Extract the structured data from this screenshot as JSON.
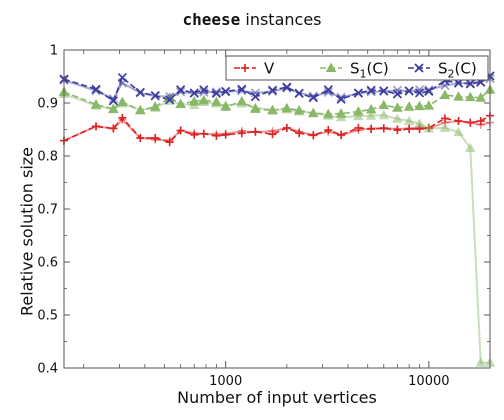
{
  "chart_data": {
    "type": "line",
    "title_code": "cheese",
    "title_rest": " instances",
    "xlabel": "Number of input vertices",
    "ylabel": "Relative solution size",
    "xscale": "log",
    "xlim": [
      160,
      20000
    ],
    "ylim": [
      0.4,
      1.0
    ],
    "xticks": [
      1000,
      10000
    ],
    "xtick_labels": [
      "1000",
      "10000"
    ],
    "yticks": [
      0.4,
      0.5,
      0.6,
      0.7,
      0.8,
      0.9,
      1.0
    ],
    "ytick_labels": [
      "0.4",
      "0.5",
      "0.6",
      "0.7",
      "0.8",
      "0.9",
      "1"
    ],
    "legend_position": "top-right",
    "grid": false,
    "series": [
      {
        "name": "V",
        "color": "#dd2222",
        "marker": "plus",
        "solid": [
          [
            160,
            0.829
          ],
          [
            230,
            0.856
          ],
          [
            280,
            0.852
          ],
          [
            310,
            0.868
          ],
          [
            380,
            0.834
          ],
          [
            450,
            0.831
          ],
          [
            530,
            0.829
          ],
          [
            600,
            0.848
          ],
          [
            700,
            0.843
          ],
          [
            780,
            0.842
          ],
          [
            900,
            0.841
          ],
          [
            1000,
            0.842
          ],
          [
            1200,
            0.847
          ],
          [
            1400,
            0.845
          ],
          [
            1700,
            0.847
          ],
          [
            2000,
            0.853
          ],
          [
            2300,
            0.846
          ],
          [
            2700,
            0.84
          ],
          [
            3200,
            0.846
          ],
          [
            3700,
            0.839
          ],
          [
            4500,
            0.849
          ],
          [
            5200,
            0.852
          ],
          [
            6000,
            0.853
          ],
          [
            7000,
            0.851
          ],
          [
            8000,
            0.852
          ],
          [
            9000,
            0.854
          ],
          [
            10000,
            0.852
          ],
          [
            12000,
            0.863
          ],
          [
            14000,
            0.866
          ],
          [
            16000,
            0.863
          ],
          [
            18000,
            0.859
          ],
          [
            20000,
            0.863
          ]
        ],
        "dashed": [
          [
            160,
            0.829
          ],
          [
            230,
            0.856
          ],
          [
            280,
            0.852
          ],
          [
            310,
            0.872
          ],
          [
            380,
            0.834
          ],
          [
            450,
            0.834
          ],
          [
            530,
            0.826
          ],
          [
            600,
            0.848
          ],
          [
            700,
            0.84
          ],
          [
            780,
            0.842
          ],
          [
            900,
            0.838
          ],
          [
            1000,
            0.84
          ],
          [
            1200,
            0.843
          ],
          [
            1400,
            0.846
          ],
          [
            1700,
            0.841
          ],
          [
            2000,
            0.853
          ],
          [
            2300,
            0.843
          ],
          [
            2700,
            0.839
          ],
          [
            3200,
            0.849
          ],
          [
            3700,
            0.84
          ],
          [
            4500,
            0.853
          ],
          [
            5200,
            0.851
          ],
          [
            6000,
            0.852
          ],
          [
            7000,
            0.849
          ],
          [
            8000,
            0.851
          ],
          [
            9000,
            0.851
          ],
          [
            10000,
            0.853
          ],
          [
            12000,
            0.871
          ],
          [
            14000,
            0.866
          ],
          [
            16000,
            0.863
          ],
          [
            18000,
            0.866
          ],
          [
            20000,
            0.876
          ]
        ]
      },
      {
        "name": "S",
        "name_sub": "1",
        "name_suffix": "(C)",
        "color": "#88b868",
        "marker": "triangle",
        "solid": [
          [
            160,
            0.917
          ],
          [
            230,
            0.895
          ],
          [
            280,
            0.888
          ],
          [
            310,
            0.899
          ],
          [
            380,
            0.887
          ],
          [
            450,
            0.891
          ],
          [
            530,
            0.904
          ],
          [
            600,
            0.898
          ],
          [
            700,
            0.896
          ],
          [
            780,
            0.902
          ],
          [
            900,
            0.899
          ],
          [
            1000,
            0.895
          ],
          [
            1200,
            0.899
          ],
          [
            1400,
            0.891
          ],
          [
            1700,
            0.887
          ],
          [
            2000,
            0.888
          ],
          [
            2300,
            0.884
          ],
          [
            2700,
            0.881
          ],
          [
            3200,
            0.876
          ],
          [
            3700,
            0.873
          ],
          [
            4500,
            0.875
          ],
          [
            5200,
            0.876
          ],
          [
            6000,
            0.877
          ],
          [
            7000,
            0.87
          ],
          [
            8000,
            0.866
          ],
          [
            9000,
            0.861
          ],
          [
            10000,
            0.852
          ],
          [
            12000,
            0.853
          ],
          [
            14000,
            0.845
          ],
          [
            16000,
            0.815
          ],
          [
            18000,
            0.41
          ],
          [
            20000,
            0.41
          ]
        ],
        "dashed": [
          [
            160,
            0.921
          ],
          [
            230,
            0.897
          ],
          [
            280,
            0.889
          ],
          [
            310,
            0.902
          ],
          [
            380,
            0.886
          ],
          [
            450,
            0.893
          ],
          [
            530,
            0.91
          ],
          [
            600,
            0.898
          ],
          [
            700,
            0.903
          ],
          [
            780,
            0.905
          ],
          [
            900,
            0.902
          ],
          [
            1000,
            0.893
          ],
          [
            1200,
            0.903
          ],
          [
            1400,
            0.889
          ],
          [
            1700,
            0.886
          ],
          [
            2000,
            0.89
          ],
          [
            2300,
            0.886
          ],
          [
            2700,
            0.881
          ],
          [
            3200,
            0.879
          ],
          [
            3700,
            0.88
          ],
          [
            4500,
            0.884
          ],
          [
            5200,
            0.888
          ],
          [
            6000,
            0.896
          ],
          [
            7000,
            0.891
          ],
          [
            8000,
            0.893
          ],
          [
            9000,
            0.894
          ],
          [
            10000,
            0.895
          ],
          [
            12000,
            0.915
          ],
          [
            14000,
            0.912
          ],
          [
            16000,
            0.911
          ],
          [
            18000,
            0.91
          ],
          [
            20000,
            0.925
          ]
        ]
      },
      {
        "name": "S",
        "name_sub": "2",
        "name_suffix": "(C)",
        "color": "#3b3b9e",
        "marker": "x",
        "solid": [
          [
            160,
            0.943
          ],
          [
            230,
            0.923
          ],
          [
            280,
            0.908
          ],
          [
            310,
            0.938
          ],
          [
            380,
            0.919
          ],
          [
            450,
            0.913
          ],
          [
            530,
            0.912
          ],
          [
            600,
            0.921
          ],
          [
            700,
            0.918
          ],
          [
            780,
            0.92
          ],
          [
            900,
            0.921
          ],
          [
            1000,
            0.921
          ],
          [
            1200,
            0.923
          ],
          [
            1400,
            0.919
          ],
          [
            1700,
            0.922
          ],
          [
            2000,
            0.928
          ],
          [
            2300,
            0.919
          ],
          [
            2700,
            0.913
          ],
          [
            3200,
            0.92
          ],
          [
            3700,
            0.911
          ],
          [
            4500,
            0.918
          ],
          [
            5200,
            0.921
          ],
          [
            6000,
            0.922
          ],
          [
            7000,
            0.924
          ],
          [
            8000,
            0.922
          ],
          [
            9000,
            0.925
          ],
          [
            10000,
            0.925
          ],
          [
            12000,
            0.933
          ],
          [
            14000,
            0.937
          ],
          [
            16000,
            0.938
          ],
          [
            18000,
            0.94
          ],
          [
            20000,
            0.946
          ]
        ],
        "dashed": [
          [
            160,
            0.945
          ],
          [
            230,
            0.926
          ],
          [
            280,
            0.904
          ],
          [
            310,
            0.948
          ],
          [
            380,
            0.92
          ],
          [
            450,
            0.914
          ],
          [
            530,
            0.906
          ],
          [
            600,
            0.925
          ],
          [
            700,
            0.919
          ],
          [
            780,
            0.925
          ],
          [
            900,
            0.918
          ],
          [
            1000,
            0.922
          ],
          [
            1200,
            0.926
          ],
          [
            1400,
            0.912
          ],
          [
            1700,
            0.924
          ],
          [
            2000,
            0.93
          ],
          [
            2300,
            0.918
          ],
          [
            2700,
            0.91
          ],
          [
            3200,
            0.925
          ],
          [
            3700,
            0.907
          ],
          [
            4500,
            0.919
          ],
          [
            5200,
            0.924
          ],
          [
            6000,
            0.923
          ],
          [
            7000,
            0.917
          ],
          [
            8000,
            0.923
          ],
          [
            9000,
            0.919
          ],
          [
            10000,
            0.922
          ],
          [
            12000,
            0.942
          ],
          [
            14000,
            0.938
          ],
          [
            16000,
            0.936
          ],
          [
            18000,
            0.939
          ],
          [
            20000,
            0.951
          ]
        ]
      }
    ]
  }
}
